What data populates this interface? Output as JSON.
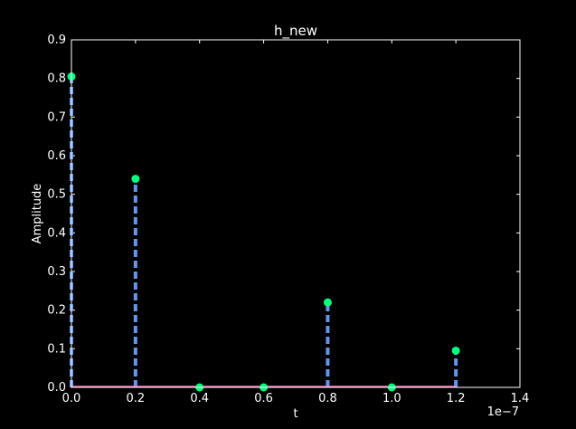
{
  "chart_data": {
    "type": "stem",
    "title": "h_new",
    "xlabel": "t",
    "ylabel": "Amplitude",
    "x_offset_label": "1e−7",
    "xlim": [
      0,
      1.4
    ],
    "ylim": [
      0,
      0.9
    ],
    "x_ticks": [
      "0.0",
      "0.2",
      "0.4",
      "0.6",
      "0.8",
      "1.0",
      "1.2",
      "1.4"
    ],
    "y_ticks": [
      "0.0",
      "0.1",
      "0.2",
      "0.3",
      "0.4",
      "0.5",
      "0.6",
      "0.7",
      "0.8",
      "0.9"
    ],
    "x": [
      0.0,
      0.2,
      0.4,
      0.6,
      0.8,
      1.0,
      1.2
    ],
    "values": [
      0.805,
      0.54,
      0.0,
      0.0,
      0.22,
      0.0,
      0.095
    ],
    "grid": false,
    "colors": {
      "background": "#000000",
      "stem": "#6495ed",
      "marker": "#00ff7f",
      "baseline": "#ff69b4",
      "axes": "#ffffff"
    }
  }
}
